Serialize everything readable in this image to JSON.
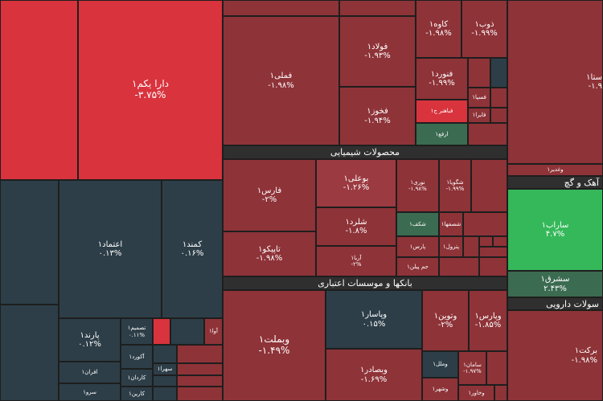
{
  "colors": {
    "neg_strong": "#d9333d",
    "neg": "#8e3338",
    "neg_mid": "#9b3a40",
    "neutral_dark": "#2d3e48",
    "pos": "#3b6b50",
    "pos_strong": "#35b85a"
  },
  "sectors": {
    "chemical": "محصولات شیمیایی",
    "banks": "بانکها و موسسات اعتباری",
    "cement": "آهک و گچ",
    "pharma": "سولات دارویی"
  },
  "tiles": {
    "dara": {
      "name": "دارا یکم۱",
      "change": "-۳.۷۵%"
    },
    "femeli": {
      "name": "فملی۱",
      "change": "-۱.۹۸%"
    },
    "foolad": {
      "name": "فولاد۱",
      "change": "-۱.۹۳%"
    },
    "fakhooz": {
      "name": "فخوز۱",
      "change": "-۱.۹۴%"
    },
    "kaveh": {
      "name": "کاوه۱",
      "change": "-۱.۹۸%"
    },
    "zob": {
      "name": "ذوب۱",
      "change": "-۱.۹۹%"
    },
    "fanvard": {
      "name": "فنورد۱",
      "change": "-۱.۹۹%"
    },
    "fesepa": {
      "name": "فسپا۱"
    },
    "faira": {
      "name": "فایرا۱"
    },
    "fabahonar": {
      "name": "فباهنر ج۱"
    },
    "arfa": {
      "name": "ارفع۱"
    },
    "sta": {
      "name": "ستا۱",
      "change": "-۱.۹"
    },
    "vaghadir": {
      "name": "وغدیر۱"
    },
    "fars": {
      "name": "فارس۱",
      "change": "-۲%"
    },
    "tapico": {
      "name": "تاپیکو۱",
      "change": "-۱.۹۸%"
    },
    "booali": {
      "name": "بوعلی۱",
      "change": "-۱.۲۶%"
    },
    "noori": {
      "name": "نوری۱",
      "change": "-۱.۹۸%"
    },
    "shegooya": {
      "name": "شگویا۱",
      "change": "-۱.۹۹%"
    },
    "sharand": {
      "name": "شلرد۱",
      "change": "-۱.۸%"
    },
    "shakaf": {
      "name": "شکف۱"
    },
    "shasfaha": {
      "name": "شصفها۱"
    },
    "parsan": {
      "name": "پارس۱"
    },
    "pardol": {
      "name": "پترول۱"
    },
    "jampilan": {
      "name": "جم پیلن۱"
    },
    "ariya": {
      "name": "آریا۱",
      "change": "-۲%"
    },
    "sarab": {
      "name": "ساراب۱",
      "change": "۴.۷%"
    },
    "sesharq": {
      "name": "سشرق۱",
      "change": "۲.۴۳%"
    },
    "etemad": {
      "name": "اعتماد۱",
      "change": "۰.۱۳%"
    },
    "kamand": {
      "name": "کمند۱",
      "change": "۰.۱۶%"
    },
    "parand": {
      "name": "پارند۱",
      "change": "۰.۱۲%"
    },
    "afran": {
      "name": "افران۱"
    },
    "sarv": {
      "name": "سرو۱"
    },
    "tasmim": {
      "name": "تصمیم۱",
      "change": "۰.۱۱%"
    },
    "akord": {
      "name": "آکورد۱"
    },
    "sahra": {
      "name": "سهرا۱"
    },
    "kardan": {
      "name": "کاردان۱"
    },
    "karin": {
      "name": "کارین۱"
    },
    "aava": {
      "name": "آوا۱"
    },
    "vabmelat": {
      "name": "وبملت۱",
      "change": "-۱.۴۹%"
    },
    "vapasar": {
      "name": "وپاسار۱",
      "change": "۰.۱۵%"
    },
    "vabsader": {
      "name": "وبصادر۱",
      "change": "-۱.۶۹%"
    },
    "vatoin": {
      "name": "وتوین۱",
      "change": "-۲%"
    },
    "vapars": {
      "name": "وپارس۱",
      "change": "-۱.۸۵%"
    },
    "vamelal": {
      "name": "وملل۱"
    },
    "vashahr": {
      "name": "وشهر۱"
    },
    "saman": {
      "name": "سامان۱",
      "change": "-۱.۹۷%"
    },
    "vakhavar": {
      "name": "وخاور۱"
    },
    "barkat": {
      "name": "برکت۱",
      "change": "-۱.۹۸%"
    }
  }
}
